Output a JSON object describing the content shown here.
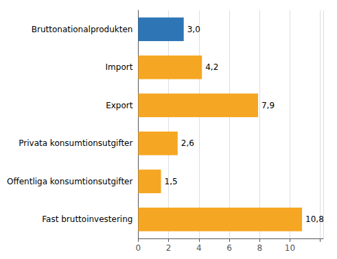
{
  "chart_data": {
    "type": "bar",
    "orientation": "horizontal",
    "categories": [
      "Bruttonationalprodukten",
      "Import",
      "Export",
      "Privata konsumtionsutgifter",
      "Offentliga konsumtionsutgifter",
      "Fast bruttoinvestering"
    ],
    "values": [
      3.0,
      4.2,
      7.9,
      2.6,
      1.5,
      10.8
    ],
    "value_labels": [
      "3,0",
      "4,2",
      "7,9",
      "2,6",
      "1,5",
      "10,8"
    ],
    "colors": [
      "#2e75b6",
      "#f5a623",
      "#f5a623",
      "#f5a623",
      "#f5a623",
      "#f5a623"
    ],
    "xlim": [
      0,
      12.2
    ],
    "xticks": [
      0,
      2,
      4,
      6,
      8,
      10
    ],
    "grid": true,
    "data_labels": true
  }
}
